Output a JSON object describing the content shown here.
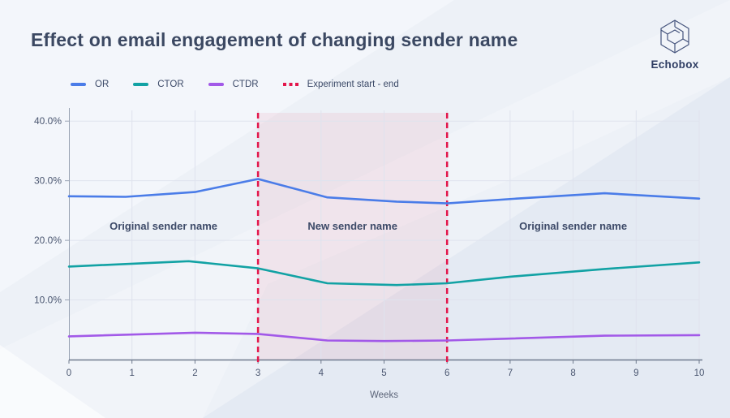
{
  "header": {
    "title": "Effect on email engagement of changing sender name"
  },
  "logo": {
    "label": "Echobox"
  },
  "legend": {
    "items": [
      {
        "id": "or",
        "label": "OR",
        "color": "#4a7ce8",
        "style": "solid"
      },
      {
        "id": "ctor",
        "label": "CTOR",
        "color": "#12a2a4",
        "style": "solid"
      },
      {
        "id": "ctdr",
        "label": "CTDR",
        "color": "#a259e8",
        "style": "solid"
      },
      {
        "id": "experiment",
        "label": "Experiment start - end",
        "color": "#e3164b",
        "style": "dashed"
      }
    ]
  },
  "colors": {
    "accent_blue": "#4a7ce8",
    "accent_teal": "#12a2a4",
    "accent_purple": "#a259e8",
    "accent_red": "#e3164b",
    "grid": "#dfe3ee",
    "axis": "#98a2b3",
    "x_axis": "#6f7a8d",
    "tick_text": "#4a5670",
    "annotation_text": "#3d4a68"
  },
  "chart_data": {
    "type": "line",
    "title": "Effect on email engagement of changing sender name",
    "xlabel": "Weeks",
    "ylabel": "",
    "xlim": [
      0,
      10
    ],
    "ylim": [
      0,
      41.8
    ],
    "grid": true,
    "legend_position": "top-left",
    "x_ticks": [
      {
        "value": 0,
        "label": "0"
      },
      {
        "value": 1,
        "label": "1"
      },
      {
        "value": 2,
        "label": "2"
      },
      {
        "value": 3,
        "label": "3"
      },
      {
        "value": 4,
        "label": "4"
      },
      {
        "value": 5,
        "label": "5"
      },
      {
        "value": 6,
        "label": "6"
      },
      {
        "value": 7,
        "label": "7"
      },
      {
        "value": 8,
        "label": "8"
      },
      {
        "value": 9,
        "label": "9"
      },
      {
        "value": 10,
        "label": "10"
      }
    ],
    "y_ticks": [
      {
        "value": 10,
        "label": "10.0%"
      },
      {
        "value": 20,
        "label": "20.0%"
      },
      {
        "value": 30,
        "label": "30.0%"
      },
      {
        "value": 40,
        "label": "40.0%"
      }
    ],
    "series": [
      {
        "name": "OR",
        "color": "#4a7ce8",
        "points": [
          [
            0,
            27.4
          ],
          [
            0.9,
            27.3
          ],
          [
            2,
            28.1
          ],
          [
            3,
            30.3
          ],
          [
            4.1,
            27.2
          ],
          [
            5.2,
            26.5
          ],
          [
            6,
            26.2
          ],
          [
            7.1,
            27.0
          ],
          [
            8.5,
            27.9
          ],
          [
            10,
            27.0
          ]
        ]
      },
      {
        "name": "CTOR",
        "color": "#12a2a4",
        "points": [
          [
            0,
            15.6
          ],
          [
            1.9,
            16.5
          ],
          [
            3,
            15.3
          ],
          [
            4.1,
            12.8
          ],
          [
            5.2,
            12.5
          ],
          [
            6,
            12.8
          ],
          [
            7,
            13.9
          ],
          [
            8.5,
            15.2
          ],
          [
            10,
            16.3
          ]
        ]
      },
      {
        "name": "CTDR",
        "color": "#a259e8",
        "points": [
          [
            0,
            3.9
          ],
          [
            2,
            4.5
          ],
          [
            3,
            4.3
          ],
          [
            4.1,
            3.2
          ],
          [
            5,
            3.1
          ],
          [
            6,
            3.2
          ],
          [
            8.5,
            4.0
          ],
          [
            10,
            4.1
          ]
        ]
      }
    ],
    "experiment_region": {
      "start_week": 3,
      "end_week": 6,
      "line_color": "#e3164b",
      "fill": "rgba(227,22,75,0.07)"
    },
    "annotations": [
      {
        "label": "Original sender name",
        "week": 1.5,
        "value": 21.8
      },
      {
        "label": "New sender name",
        "week": 4.5,
        "value": 21.8
      },
      {
        "label": "Original sender name",
        "week": 8.0,
        "value": 21.8
      }
    ]
  }
}
